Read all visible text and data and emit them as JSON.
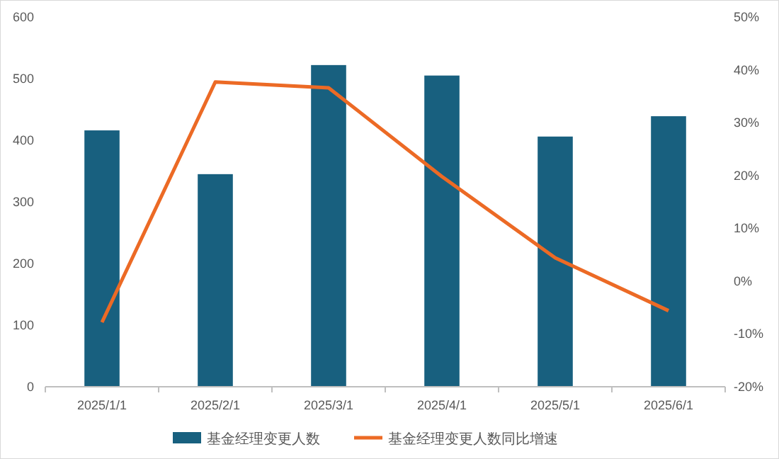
{
  "chart_data": {
    "type": "bar",
    "categories": [
      "2025/1/1",
      "2025/2/1",
      "2025/3/1",
      "2025/4/1",
      "2025/5/1",
      "2025/6/1"
    ],
    "series": [
      {
        "name": "基金经理变更人数",
        "color": "#18607f",
        "values": [
          416,
          345,
          522,
          505,
          406,
          439
        ]
      },
      {
        "name": "基金经理变更人数同比增速",
        "type": "line",
        "axis": "y2",
        "color": "#ec6a25",
        "values": [
          -7.8,
          37.7,
          36.6,
          19.8,
          4.4,
          -5.6
        ]
      }
    ],
    "ylim": [
      0,
      600
    ],
    "yticks": [
      0,
      100,
      200,
      300,
      400,
      500,
      600
    ],
    "y2lim": [
      -20,
      50
    ],
    "y2ticks": [
      {
        "value": -20,
        "label": "-20%"
      },
      {
        "value": -10,
        "label": "-10%"
      },
      {
        "value": 0,
        "label": "0%"
      },
      {
        "value": 10,
        "label": "10%"
      },
      {
        "value": 20,
        "label": "20%"
      },
      {
        "value": 30,
        "label": "30%"
      },
      {
        "value": 40,
        "label": "40%"
      },
      {
        "value": 50,
        "label": "50%"
      }
    ],
    "legend": "bottom",
    "marker": "none"
  }
}
